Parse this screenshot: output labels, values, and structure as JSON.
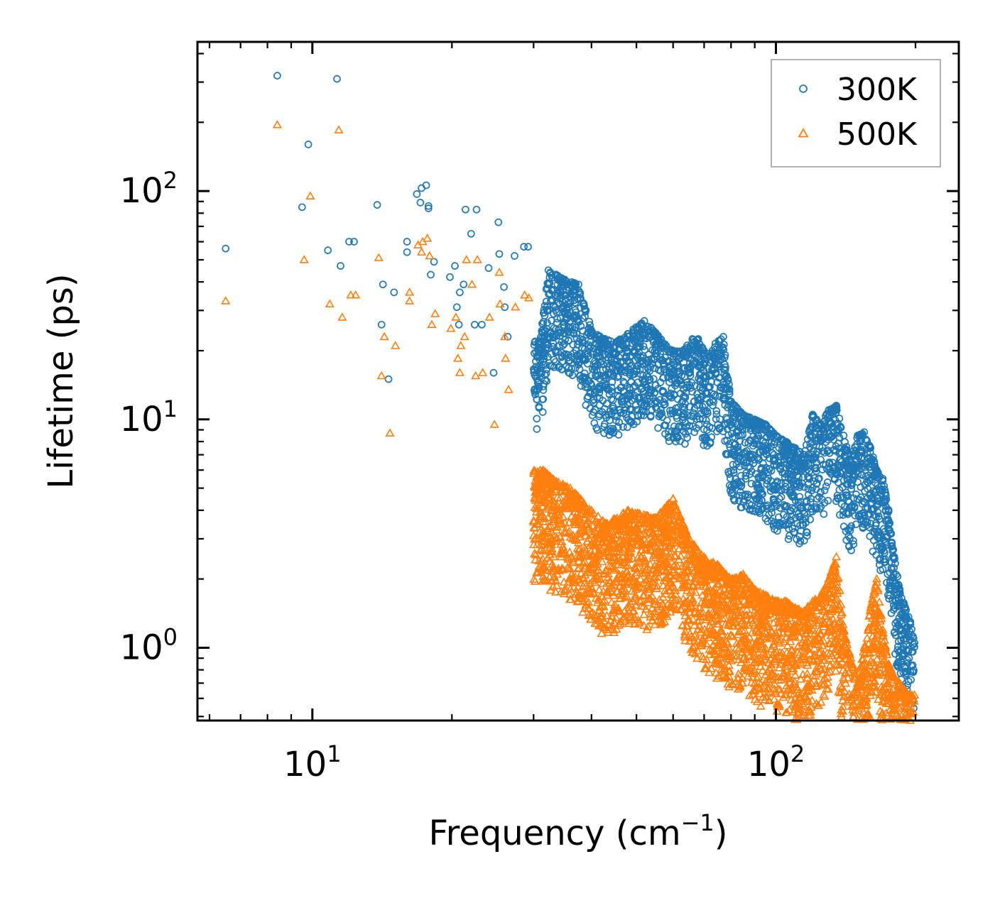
{
  "chart_data": {
    "type": "scatter",
    "title": "",
    "xlabel": {
      "base": "Frequency (cm",
      "sup": "−1",
      "tail": ")"
    },
    "ylabel": "Lifetime (ps)",
    "xscale": "log",
    "yscale": "log",
    "xlim": [
      5.65,
      248
    ],
    "ylim": [
      0.48,
      450
    ],
    "x_major_ticks": [
      {
        "value": 10,
        "base": "10",
        "exp": "1"
      },
      {
        "value": 100,
        "base": "10",
        "exp": "2"
      }
    ],
    "y_major_ticks": [
      {
        "value": 1,
        "base": "10",
        "exp": "0"
      },
      {
        "value": 10,
        "base": "10",
        "exp": "1"
      },
      {
        "value": 100,
        "base": "10",
        "exp": "2"
      }
    ],
    "legend_position": "top-right",
    "series": [
      {
        "name": "300K",
        "marker": "circle",
        "color": "#1f77b4",
        "points": [
          [
            6.5,
            56
          ],
          [
            8.4,
            320
          ],
          [
            9.5,
            85
          ],
          [
            9.8,
            160
          ],
          [
            10.8,
            55
          ],
          [
            11.3,
            310
          ],
          [
            11.5,
            47
          ],
          [
            12.0,
            60
          ],
          [
            12.3,
            60
          ],
          [
            13.8,
            87
          ],
          [
            14.1,
            26
          ],
          [
            14.2,
            39
          ],
          [
            14.6,
            15
          ],
          [
            15.0,
            36
          ],
          [
            16.0,
            60
          ],
          [
            16.0,
            54
          ],
          [
            16.8,
            97
          ],
          [
            17.1,
            89
          ],
          [
            17.2,
            103
          ],
          [
            17.6,
            106
          ],
          [
            17.8,
            84
          ],
          [
            17.8,
            86
          ],
          [
            18.0,
            43
          ],
          [
            18.3,
            49
          ],
          [
            19.8,
            42
          ],
          [
            20.3,
            47
          ],
          [
            20.5,
            31
          ],
          [
            20.7,
            26
          ],
          [
            20.8,
            36
          ],
          [
            21.2,
            39
          ],
          [
            21.4,
            83
          ],
          [
            22.0,
            65
          ],
          [
            22.4,
            26
          ],
          [
            22.6,
            83
          ],
          [
            23.2,
            26
          ],
          [
            24.0,
            46
          ],
          [
            24.6,
            16
          ],
          [
            25.2,
            73
          ],
          [
            25.3,
            53
          ],
          [
            25.9,
            38
          ],
          [
            26.0,
            31
          ],
          [
            26.4,
            23
          ],
          [
            27.3,
            52
          ],
          [
            28.6,
            57
          ],
          [
            29.2,
            57
          ],
          [
            31.0,
            22
          ],
          [
            32.3,
            45
          ],
          [
            35.0,
            41
          ],
          [
            37.5,
            39
          ],
          [
            40.2,
            24
          ],
          [
            44.0,
            22
          ],
          [
            45.5,
            22
          ],
          [
            52.0,
            27
          ],
          [
            55.0,
            24
          ],
          [
            58.0,
            21
          ],
          [
            60.0,
            20
          ],
          [
            63.0,
            20
          ],
          [
            66.0,
            22.5
          ],
          [
            68.0,
            22.5
          ],
          [
            70.0,
            20
          ],
          [
            72.0,
            19
          ],
          [
            74.0,
            21.5
          ],
          [
            77.0,
            23
          ],
          [
            80.0,
            12
          ],
          [
            85.0,
            10.5
          ],
          [
            90.0,
            10
          ],
          [
            95.0,
            9.5
          ],
          [
            100.0,
            8.5
          ],
          [
            105.0,
            8
          ],
          [
            110.0,
            7.5
          ],
          [
            115.0,
            7
          ],
          [
            120.0,
            10.5
          ],
          [
            125.0,
            9.5
          ],
          [
            130.0,
            11
          ],
          [
            135.0,
            11.5
          ],
          [
            140.0,
            8.5
          ],
          [
            145.0,
            6.5
          ],
          [
            150.0,
            8.5
          ],
          [
            155.0,
            8.8
          ],
          [
            160.0,
            7.5
          ],
          [
            165.0,
            6
          ],
          [
            170.0,
            5.5
          ],
          [
            175.0,
            4
          ],
          [
            180.0,
            2.5
          ],
          [
            185.0,
            1.8
          ],
          [
            190.0,
            1.5
          ],
          [
            195.0,
            1.3
          ],
          [
            198.0,
            1.1
          ],
          [
            199.0,
            1.05
          ]
        ]
      },
      {
        "name": "500K",
        "marker": "triangle",
        "color": "#ff7f0e",
        "points": [
          [
            6.5,
            33
          ],
          [
            8.4,
            195
          ],
          [
            9.6,
            50
          ],
          [
            9.9,
            95
          ],
          [
            10.9,
            32
          ],
          [
            11.4,
            185
          ],
          [
            11.6,
            28
          ],
          [
            12.1,
            35
          ],
          [
            12.4,
            35
          ],
          [
            13.9,
            51
          ],
          [
            14.1,
            15.5
          ],
          [
            14.3,
            23
          ],
          [
            14.7,
            8.7
          ],
          [
            15.1,
            21
          ],
          [
            16.2,
            36
          ],
          [
            16.2,
            33
          ],
          [
            16.9,
            58
          ],
          [
            17.2,
            54
          ],
          [
            17.3,
            60
          ],
          [
            17.7,
            62
          ],
          [
            17.9,
            52
          ],
          [
            18.1,
            26
          ],
          [
            18.4,
            29
          ],
          [
            19.9,
            25
          ],
          [
            20.4,
            28
          ],
          [
            20.6,
            18.5
          ],
          [
            20.8,
            16
          ],
          [
            20.9,
            21
          ],
          [
            21.3,
            23
          ],
          [
            21.5,
            50
          ],
          [
            22.1,
            39
          ],
          [
            22.5,
            15.5
          ],
          [
            22.7,
            50
          ],
          [
            23.3,
            16
          ],
          [
            24.1,
            28
          ],
          [
            24.7,
            9.5
          ],
          [
            25.3,
            44
          ],
          [
            25.4,
            32
          ],
          [
            26.0,
            23
          ],
          [
            26.1,
            18.5
          ],
          [
            26.5,
            13.5
          ],
          [
            27.4,
            31
          ],
          [
            28.7,
            35
          ],
          [
            29.3,
            34
          ],
          [
            31.5,
            6
          ],
          [
            33.0,
            5.5
          ],
          [
            36.0,
            5
          ],
          [
            40.0,
            4
          ],
          [
            43.0,
            3.5
          ],
          [
            48.0,
            4
          ],
          [
            55.0,
            3.7
          ],
          [
            60.0,
            4.5
          ],
          [
            65.0,
            3
          ],
          [
            70.0,
            2.5
          ],
          [
            75.0,
            2.3
          ],
          [
            80.0,
            2
          ],
          [
            85.0,
            2.1
          ],
          [
            90.0,
            1.8
          ],
          [
            95.0,
            1.7
          ],
          [
            100.0,
            1.6
          ],
          [
            105.0,
            1.6
          ],
          [
            110.0,
            1.5
          ],
          [
            115.0,
            1.45
          ],
          [
            120.0,
            1.6
          ],
          [
            125.0,
            1.7
          ],
          [
            130.0,
            2
          ],
          [
            135.0,
            2.5
          ],
          [
            140.0,
            1.2
          ],
          [
            145.0,
            0.9
          ],
          [
            150.0,
            0.7
          ],
          [
            155.0,
            1
          ],
          [
            160.0,
            1.5
          ],
          [
            165.0,
            2
          ],
          [
            170.0,
            1.2
          ],
          [
            175.0,
            0.85
          ],
          [
            180.0,
            0.75
          ],
          [
            185.0,
            0.7
          ],
          [
            190.0,
            0.65
          ],
          [
            195.0,
            0.62
          ],
          [
            199.0,
            0.62
          ]
        ]
      }
    ]
  }
}
